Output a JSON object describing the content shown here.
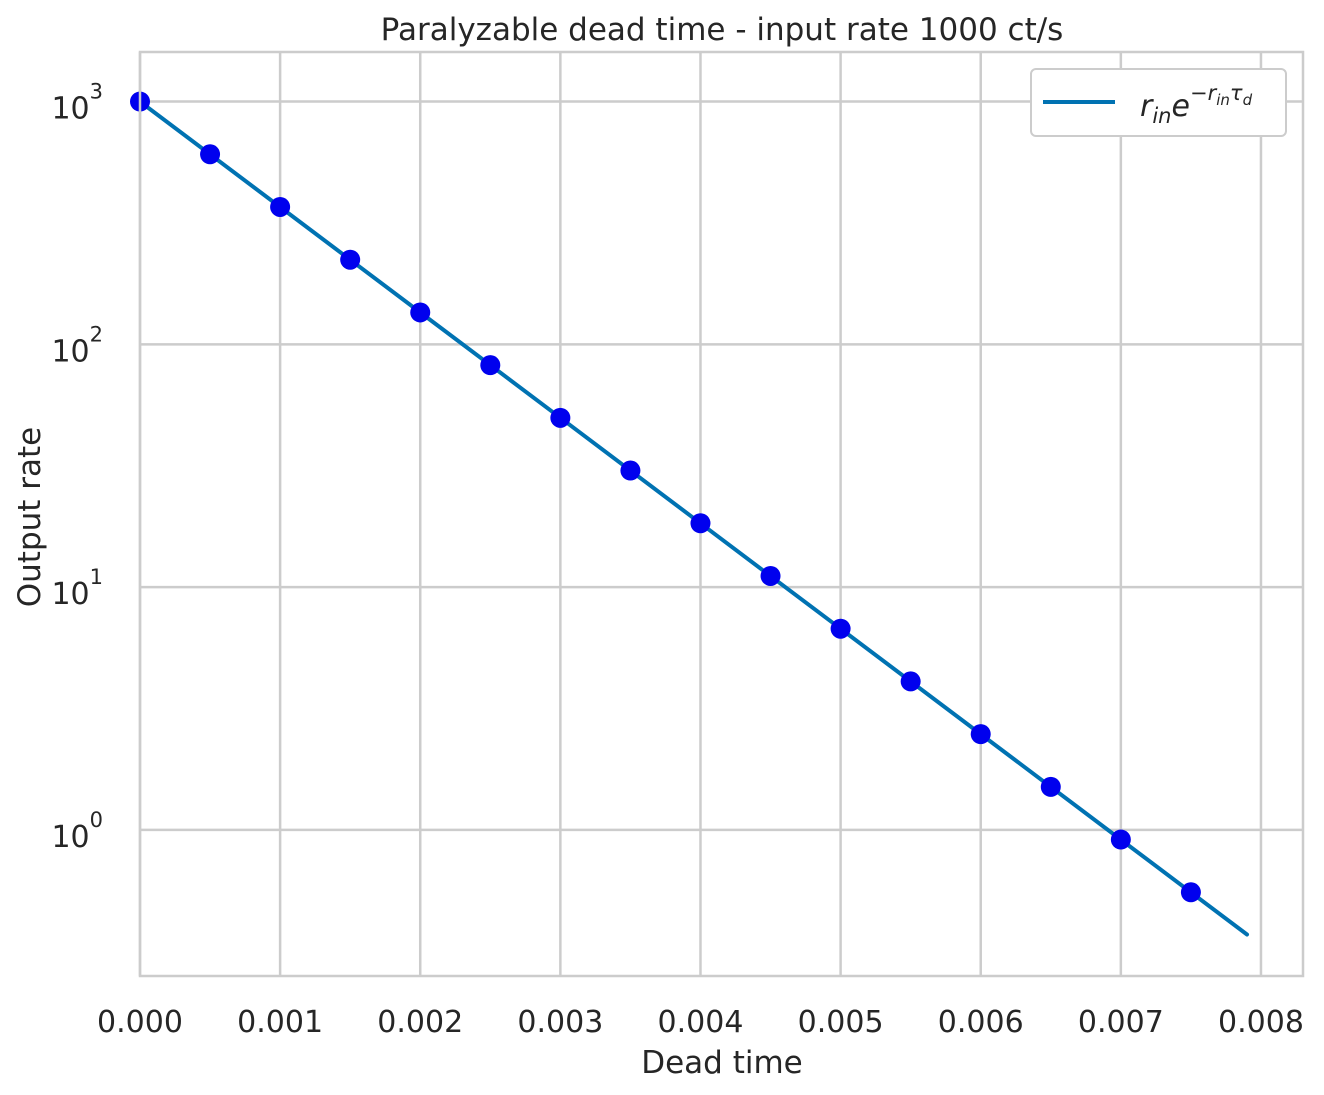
{
  "chart_data": {
    "type": "line",
    "title": "Paralyzable dead time - input rate 1000 ct/s",
    "xlabel": "Dead time",
    "ylabel": "Output rate",
    "xlim": [
      0.0,
      0.0083
    ],
    "ylim": [
      0.25,
      1600
    ],
    "yscale": "log",
    "grid": true,
    "legend_position": "top-right",
    "x_ticks": [
      "0.000",
      "0.001",
      "0.002",
      "0.003",
      "0.004",
      "0.005",
      "0.006",
      "0.007",
      "0.008"
    ],
    "y_ticks": [
      {
        "value": 1,
        "base": "10",
        "exp": "0"
      },
      {
        "value": 10,
        "base": "10",
        "exp": "1"
      },
      {
        "value": 100,
        "base": "10",
        "exp": "2"
      },
      {
        "value": 1000,
        "base": "10",
        "exp": "3"
      }
    ],
    "series": [
      {
        "kind": "line",
        "legend": {
          "r": "r",
          "r_sub": "in",
          "e": "e",
          "exp_prefix": "−",
          "exp_r": "r",
          "exp_r_sub": "in",
          "exp_tau": "τ",
          "exp_tau_sub": "d"
        },
        "color": "#0072b2",
        "x": [
          0.0,
          0.001,
          0.002,
          0.003,
          0.004,
          0.005,
          0.006,
          0.007,
          0.0079
        ],
        "y": [
          1000,
          367.88,
          135.34,
          49.79,
          18.32,
          6.738,
          2.479,
          0.912,
          0.3707
        ]
      },
      {
        "kind": "scatter",
        "color": "#0000ee",
        "x": [
          0.0,
          0.0005,
          0.001,
          0.0015,
          0.002,
          0.0025,
          0.003,
          0.0035,
          0.004,
          0.0045,
          0.005,
          0.0055,
          0.006,
          0.0065,
          0.007,
          0.0075
        ],
        "y": [
          1000,
          606.5,
          367.9,
          223.1,
          135.3,
          82.08,
          49.79,
          30.2,
          18.32,
          11.11,
          6.738,
          4.087,
          2.479,
          1.503,
          0.912,
          0.553
        ]
      }
    ]
  }
}
